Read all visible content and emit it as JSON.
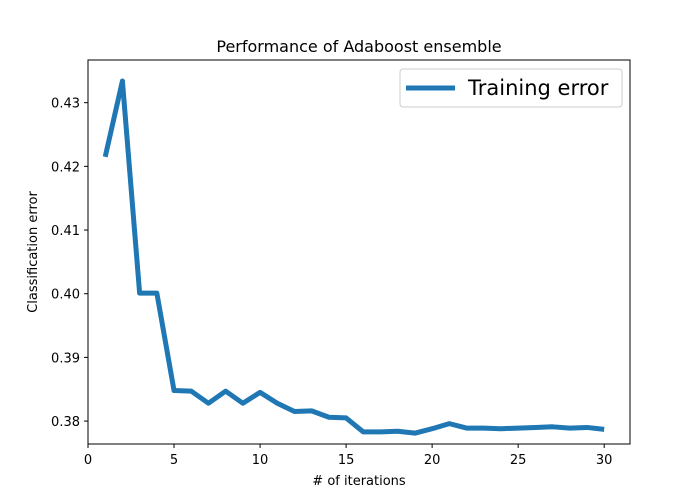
{
  "chart_data": {
    "type": "line",
    "title": "Performance of Adaboost ensemble",
    "xlabel": "# of iterations",
    "ylabel": "Classification error",
    "xlim": [
      0,
      31.5
    ],
    "ylim": [
      0.3764,
      0.4367
    ],
    "xticks": [
      0,
      5,
      10,
      15,
      20,
      25,
      30
    ],
    "xtick_labels": [
      "0",
      "5",
      "10",
      "15",
      "20",
      "25",
      "30"
    ],
    "yticks": [
      0.38,
      0.39,
      0.4,
      0.41,
      0.42,
      0.43
    ],
    "ytick_labels": [
      "0.38",
      "0.39",
      "0.40",
      "0.41",
      "0.42",
      "0.43"
    ],
    "grid": false,
    "legend_position": "top-right",
    "series": [
      {
        "name": "Training error",
        "color": "#1f77b4",
        "x": [
          1,
          2,
          3,
          4,
          5,
          6,
          7,
          8,
          9,
          10,
          11,
          12,
          13,
          14,
          15,
          16,
          17,
          18,
          19,
          20,
          21,
          22,
          23,
          24,
          25,
          26,
          27,
          28,
          29,
          30
        ],
        "y": [
          0.4215,
          0.4334,
          0.4001,
          0.4001,
          0.3848,
          0.3847,
          0.3828,
          0.3847,
          0.3828,
          0.3845,
          0.3828,
          0.3815,
          0.3816,
          0.3806,
          0.3805,
          0.3783,
          0.3783,
          0.3784,
          0.3781,
          0.3788,
          0.3796,
          0.3789,
          0.3789,
          0.3788,
          0.3789,
          0.379,
          0.3791,
          0.3789,
          0.379,
          0.3787
        ]
      }
    ]
  }
}
